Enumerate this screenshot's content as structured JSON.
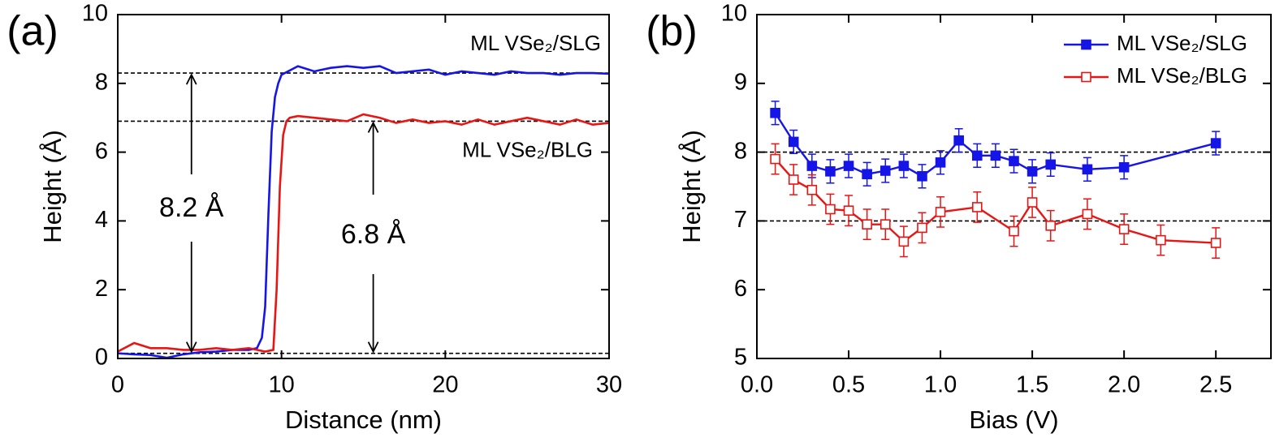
{
  "chart_data": [
    {
      "type": "line",
      "panel_label": "(a)",
      "x_label": "Distance (nm)",
      "y_label": "Height (Å)",
      "xlim": [
        0,
        30
      ],
      "ylim": [
        0,
        10
      ],
      "xticks": [
        0,
        10,
        20,
        30
      ],
      "yticks": [
        0,
        2,
        4,
        6,
        8,
        10
      ],
      "hlines": [
        8.3,
        6.9,
        0.15
      ],
      "annotations": [
        "ML VSe₂/SLG",
        "ML VSe₂/BLG",
        "8.2 Å",
        "6.8 Å"
      ],
      "series": [
        {
          "name": "ML VSe₂/SLG",
          "color": "#1515e8",
          "x": [
            0,
            1,
            2,
            3,
            4,
            5,
            6,
            7,
            8,
            8.5,
            8.8,
            9,
            9.2,
            9.4,
            9.6,
            9.8,
            10,
            11,
            12,
            13,
            14,
            15,
            16,
            17,
            18,
            19,
            20,
            21,
            22,
            23,
            24,
            25,
            26,
            27,
            28,
            29,
            30
          ],
          "values": [
            0.15,
            0.12,
            0.1,
            0.02,
            0.12,
            0.18,
            0.2,
            0.25,
            0.25,
            0.3,
            0.6,
            1.5,
            4.2,
            6.6,
            7.6,
            8.0,
            8.25,
            8.5,
            8.35,
            8.45,
            8.5,
            8.45,
            8.5,
            8.3,
            8.35,
            8.4,
            8.25,
            8.35,
            8.3,
            8.25,
            8.35,
            8.3,
            8.3,
            8.25,
            8.3,
            8.3,
            8.28
          ]
        },
        {
          "name": "ML VSe₂/BLG",
          "color": "#e81515",
          "x": [
            0,
            1,
            2,
            3,
            4,
            5,
            6,
            7,
            8,
            9,
            9.5,
            9.7,
            9.9,
            10.1,
            10.3,
            10.5,
            11,
            12,
            13,
            14,
            15,
            16,
            17,
            18,
            19,
            20,
            21,
            22,
            23,
            24,
            25,
            26,
            27,
            28,
            29,
            30
          ],
          "values": [
            0.2,
            0.45,
            0.3,
            0.3,
            0.25,
            0.25,
            0.3,
            0.25,
            0.3,
            0.2,
            0.25,
            2.0,
            5.0,
            6.5,
            6.9,
            7.0,
            7.05,
            7.0,
            6.95,
            6.9,
            7.1,
            7.0,
            6.85,
            6.95,
            6.85,
            6.9,
            6.8,
            6.95,
            6.8,
            6.9,
            7.0,
            6.9,
            6.8,
            6.95,
            6.8,
            6.85
          ]
        }
      ]
    },
    {
      "type": "errorbar",
      "panel_label": "(b)",
      "x_label": "Bias (V)",
      "y_label": "Height (Å)",
      "xlim": [
        0,
        2.8
      ],
      "ylim": [
        5,
        10
      ],
      "xticks": [
        {
          "value": 0,
          "label": "0.0"
        },
        {
          "value": 0.5,
          "label": "0.5"
        },
        {
          "value": 1,
          "label": "1.0"
        },
        {
          "value": 1.5,
          "label": "1.5"
        },
        {
          "value": 2,
          "label": "2.0"
        },
        {
          "value": 2.5,
          "label": "2.5"
        }
      ],
      "yticks": [
        5,
        6,
        7,
        8,
        9,
        10
      ],
      "hlines": [
        8,
        7
      ],
      "legend": "upper right",
      "series": [
        {
          "name": "ML VSe₂/SLG",
          "color": "#1515e8",
          "marker_filled": true,
          "x": [
            0.1,
            0.2,
            0.3,
            0.4,
            0.5,
            0.6,
            0.7,
            0.8,
            0.9,
            1.0,
            1.1,
            1.2,
            1.3,
            1.4,
            1.5,
            1.6,
            1.8,
            2.0,
            2.5
          ],
          "values": [
            8.57,
            8.15,
            7.8,
            7.72,
            7.8,
            7.68,
            7.73,
            7.8,
            7.65,
            7.85,
            8.17,
            7.95,
            7.95,
            7.87,
            7.72,
            7.82,
            7.75,
            7.78,
            8.13
          ],
          "errors": [
            0.17,
            0.17,
            0.17,
            0.17,
            0.17,
            0.17,
            0.17,
            0.17,
            0.17,
            0.17,
            0.17,
            0.17,
            0.17,
            0.17,
            0.17,
            0.17,
            0.17,
            0.17,
            0.17
          ]
        },
        {
          "name": "ML VSe₂/BLG",
          "color": "#e81515",
          "marker_filled": false,
          "x": [
            0.1,
            0.2,
            0.3,
            0.4,
            0.5,
            0.6,
            0.7,
            0.8,
            0.9,
            1.0,
            1.2,
            1.4,
            1.5,
            1.6,
            1.8,
            2.0,
            2.2,
            2.5
          ],
          "values": [
            7.9,
            7.6,
            7.45,
            7.17,
            7.15,
            6.95,
            6.95,
            6.7,
            6.9,
            7.13,
            7.2,
            6.85,
            7.27,
            6.93,
            7.1,
            6.88,
            6.72,
            6.68
          ],
          "errors": [
            0.22,
            0.22,
            0.22,
            0.22,
            0.22,
            0.22,
            0.22,
            0.22,
            0.22,
            0.22,
            0.22,
            0.22,
            0.22,
            0.22,
            0.22,
            0.22,
            0.22,
            0.22
          ]
        }
      ]
    }
  ]
}
